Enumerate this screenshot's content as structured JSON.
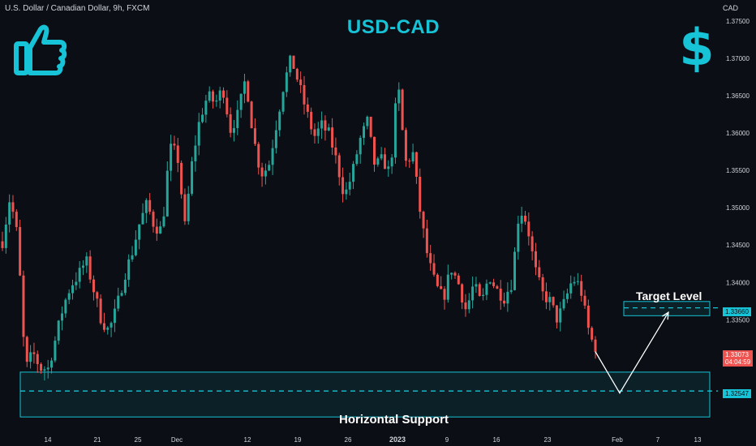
{
  "header": {
    "symbol_line": "U.S. Dollar / Canadian Dollar, 9h, FXCM",
    "currency": "CAD"
  },
  "icons": {
    "thumb": "thumbs-up-icon",
    "dollar": "dollar-sign-icon",
    "dollar_glyph": "$"
  },
  "colors": {
    "accent": "#17c3d6",
    "bull": "#26a69a",
    "bear": "#ef5350",
    "background": "#0b0e14"
  },
  "annotations": {
    "support_label": "Horizontal Support",
    "target_label": "Target Level"
  },
  "price_tags": {
    "current_price": "1.33073",
    "countdown": "04:04:59",
    "target_price": "1.33660",
    "support_price": "1.32547"
  },
  "chart_data": {
    "type": "candlestick",
    "title": "USD-CAD",
    "ylim": [
      1.3205,
      1.3778
    ],
    "y_ticks": [
      "1.37500",
      "1.37000",
      "1.36500",
      "1.36000",
      "1.35500",
      "1.35000",
      "1.34500",
      "1.34000",
      "1.33500",
      "1.33000"
    ],
    "x_ticks": [
      "14",
      "21",
      "25",
      "Dec",
      "12",
      "19",
      "26",
      "2023",
      "9",
      "16",
      "23",
      "Feb",
      "7",
      "13"
    ],
    "support_zone": [
      1.322,
      1.328
    ],
    "support_level": 1.32547,
    "target_zone": [
      1.33555,
      1.33745
    ],
    "target_level": 1.3366,
    "projection": [
      1.33073,
      1.3252,
      1.336
    ],
    "waypoints": [
      1.3455,
      1.3515,
      1.346,
      1.3283,
      1.3306,
      1.3285,
      1.3285,
      1.3325,
      1.3368,
      1.3396,
      1.341,
      1.343,
      1.339,
      1.335,
      1.3335,
      1.3365,
      1.3408,
      1.3438,
      1.3478,
      1.3505,
      1.3475,
      1.347,
      1.358,
      1.3572,
      1.3475,
      1.3565,
      1.3621,
      1.365,
      1.364,
      1.366,
      1.3605,
      1.3625,
      1.3675,
      1.3595,
      1.3545,
      1.3555,
      1.361,
      1.3665,
      1.37,
      1.3665,
      1.3628,
      1.3595,
      1.361,
      1.3598,
      1.356,
      1.3515,
      1.3545,
      1.359,
      1.3615,
      1.3555,
      1.3565,
      1.3545,
      1.367,
      1.356,
      1.3572,
      1.349,
      1.343,
      1.3395,
      1.3378,
      1.342,
      1.3398,
      1.3362,
      1.3398,
      1.337,
      1.341,
      1.339,
      1.338,
      1.34,
      1.35,
      1.348,
      1.342,
      1.3385,
      1.3375,
      1.335,
      1.3375,
      1.3405,
      1.3395,
      1.334,
      1.3307
    ]
  }
}
